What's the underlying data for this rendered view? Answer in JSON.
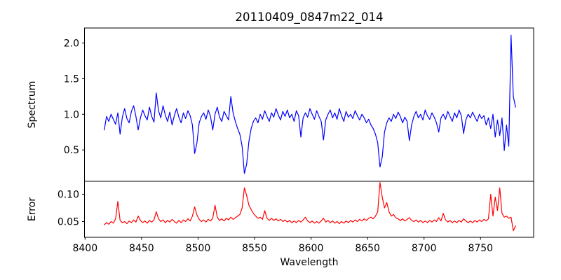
{
  "figure": {
    "title": "20110409_0847m22_014",
    "xlabel": "Wavelength",
    "background": "#ffffff",
    "axis_color": "#000000",
    "xlim": [
      8399.5,
      8797
    ],
    "x_ticks": [
      8400,
      8450,
      8500,
      8550,
      8600,
      8650,
      8700,
      8750
    ],
    "panels": [
      {
        "name": "spectrum",
        "ylabel": "Spectrum",
        "line_color": "#0000ff",
        "ylim": [
          0.06,
          2.21
        ],
        "y_ticks": [
          0.5,
          1.0,
          1.5,
          2.0
        ],
        "y_tick_decimals": 1
      },
      {
        "name": "error",
        "ylabel": "Error",
        "line_color": "#ff0000",
        "ylim": [
          0.021,
          0.124
        ],
        "y_ticks": [
          0.05,
          0.1
        ],
        "y_tick_decimals": 2
      }
    ]
  },
  "chart_data": {
    "type": "line",
    "title": "20110409_0847m22_014",
    "xlabel": "Wavelength",
    "ylabels": [
      "Spectrum",
      "Error"
    ],
    "legend": "none",
    "grid": false,
    "x_start": 8417,
    "x_step": 2,
    "n_points": 183,
    "notable_features": {
      "absorption_lines_wavelength": [
        8498,
        8542,
        8662
      ],
      "absorption_depths": [
        0.45,
        0.17,
        0.26
      ],
      "emission_spike": {
        "wavelength": 8777,
        "peak": 2.11
      },
      "continuum_level": 1.0,
      "error_baseline": 0.05,
      "error_spikes_wavelength": [
        8429,
        8497,
        8541,
        8661,
        8759,
        8767
      ],
      "error_spike_values": [
        0.087,
        0.077,
        0.112,
        0.122,
        0.1,
        0.112
      ]
    },
    "series": [
      {
        "name": "Spectrum",
        "color": "#0000ff",
        "panel": 0,
        "values": [
          0.78,
          0.97,
          0.9,
          1.0,
          0.93,
          0.86,
          1.02,
          0.72,
          0.96,
          1.08,
          0.94,
          0.88,
          1.04,
          1.12,
          0.97,
          0.78,
          0.95,
          1.06,
          0.98,
          0.92,
          1.1,
          0.97,
          0.89,
          1.3,
          1.05,
          0.95,
          1.12,
          0.99,
          0.9,
          1.03,
          0.85,
          0.98,
          1.08,
          0.96,
          0.88,
          1.02,
          0.94,
          1.05,
          0.98,
          0.85,
          0.45,
          0.6,
          0.88,
          0.97,
          1.02,
          0.93,
          1.06,
          0.97,
          0.78,
          1.0,
          1.1,
          0.96,
          0.9,
          1.04,
          0.98,
          0.92,
          1.25,
          1.02,
          0.9,
          0.8,
          0.72,
          0.55,
          0.17,
          0.3,
          0.62,
          0.8,
          0.9,
          0.95,
          0.88,
          1.0,
          0.93,
          1.05,
          0.97,
          0.9,
          1.02,
          0.96,
          1.08,
          0.99,
          0.92,
          1.04,
          0.97,
          1.06,
          0.95,
          1.0,
          0.9,
          1.05,
          0.98,
          0.68,
          0.95,
          1.02,
          0.96,
          1.08,
          1.0,
          0.93,
          1.05,
          0.97,
          0.9,
          0.64,
          0.92,
          1.0,
          1.06,
          0.95,
          1.02,
          0.93,
          1.08,
          0.98,
          0.9,
          1.04,
          0.96,
          1.0,
          0.94,
          1.05,
          0.98,
          0.92,
          1.0,
          0.95,
          0.88,
          0.93,
          0.85,
          0.8,
          0.72,
          0.6,
          0.26,
          0.4,
          0.75,
          0.88,
          0.95,
          0.9,
          1.0,
          0.94,
          1.03,
          0.97,
          0.88,
          0.96,
          0.9,
          0.63,
          0.85,
          0.97,
          1.04,
          0.95,
          1.0,
          0.92,
          1.06,
          0.98,
          0.93,
          1.02,
          0.96,
          0.88,
          0.75,
          0.95,
          1.0,
          0.93,
          1.04,
          0.97,
          0.9,
          1.02,
          0.95,
          1.06,
          0.98,
          0.73,
          0.92,
          1.0,
          0.95,
          1.03,
          0.96,
          0.9,
          1.0,
          0.94,
          0.98,
          0.85,
          0.95,
          0.8,
          1.0,
          0.68,
          0.92,
          0.7,
          0.95,
          0.49,
          0.85,
          0.55,
          2.11,
          1.25,
          1.1
        ]
      },
      {
        "name": "Error",
        "color": "#ff0000",
        "panel": 1,
        "values": [
          0.044,
          0.048,
          0.045,
          0.05,
          0.047,
          0.055,
          0.087,
          0.052,
          0.048,
          0.05,
          0.046,
          0.051,
          0.048,
          0.053,
          0.049,
          0.06,
          0.052,
          0.048,
          0.051,
          0.047,
          0.052,
          0.049,
          0.053,
          0.068,
          0.055,
          0.05,
          0.053,
          0.048,
          0.052,
          0.049,
          0.054,
          0.05,
          0.047,
          0.052,
          0.048,
          0.053,
          0.05,
          0.055,
          0.051,
          0.06,
          0.077,
          0.062,
          0.054,
          0.05,
          0.053,
          0.049,
          0.054,
          0.051,
          0.056,
          0.08,
          0.058,
          0.052,
          0.055,
          0.051,
          0.056,
          0.053,
          0.058,
          0.054,
          0.057,
          0.06,
          0.063,
          0.075,
          0.112,
          0.098,
          0.08,
          0.072,
          0.065,
          0.06,
          0.056,
          0.058,
          0.054,
          0.07,
          0.056,
          0.052,
          0.056,
          0.052,
          0.055,
          0.051,
          0.054,
          0.05,
          0.053,
          0.049,
          0.052,
          0.048,
          0.051,
          0.048,
          0.052,
          0.049,
          0.053,
          0.058,
          0.051,
          0.048,
          0.051,
          0.047,
          0.05,
          0.047,
          0.051,
          0.056,
          0.049,
          0.052,
          0.048,
          0.051,
          0.047,
          0.05,
          0.046,
          0.05,
          0.047,
          0.051,
          0.048,
          0.052,
          0.049,
          0.053,
          0.05,
          0.054,
          0.051,
          0.055,
          0.052,
          0.056,
          0.058,
          0.055,
          0.06,
          0.068,
          0.122,
          0.095,
          0.075,
          0.085,
          0.068,
          0.06,
          0.063,
          0.057,
          0.055,
          0.052,
          0.055,
          0.051,
          0.054,
          0.057,
          0.052,
          0.05,
          0.053,
          0.049,
          0.052,
          0.048,
          0.051,
          0.048,
          0.052,
          0.049,
          0.053,
          0.05,
          0.057,
          0.051,
          0.065,
          0.053,
          0.049,
          0.052,
          0.048,
          0.051,
          0.048,
          0.052,
          0.049,
          0.055,
          0.051,
          0.048,
          0.051,
          0.048,
          0.052,
          0.049,
          0.053,
          0.05,
          0.054,
          0.051,
          0.055,
          0.1,
          0.06,
          0.095,
          0.07,
          0.112,
          0.065,
          0.058,
          0.06,
          0.056,
          0.058,
          0.033,
          0.042
        ]
      }
    ]
  }
}
